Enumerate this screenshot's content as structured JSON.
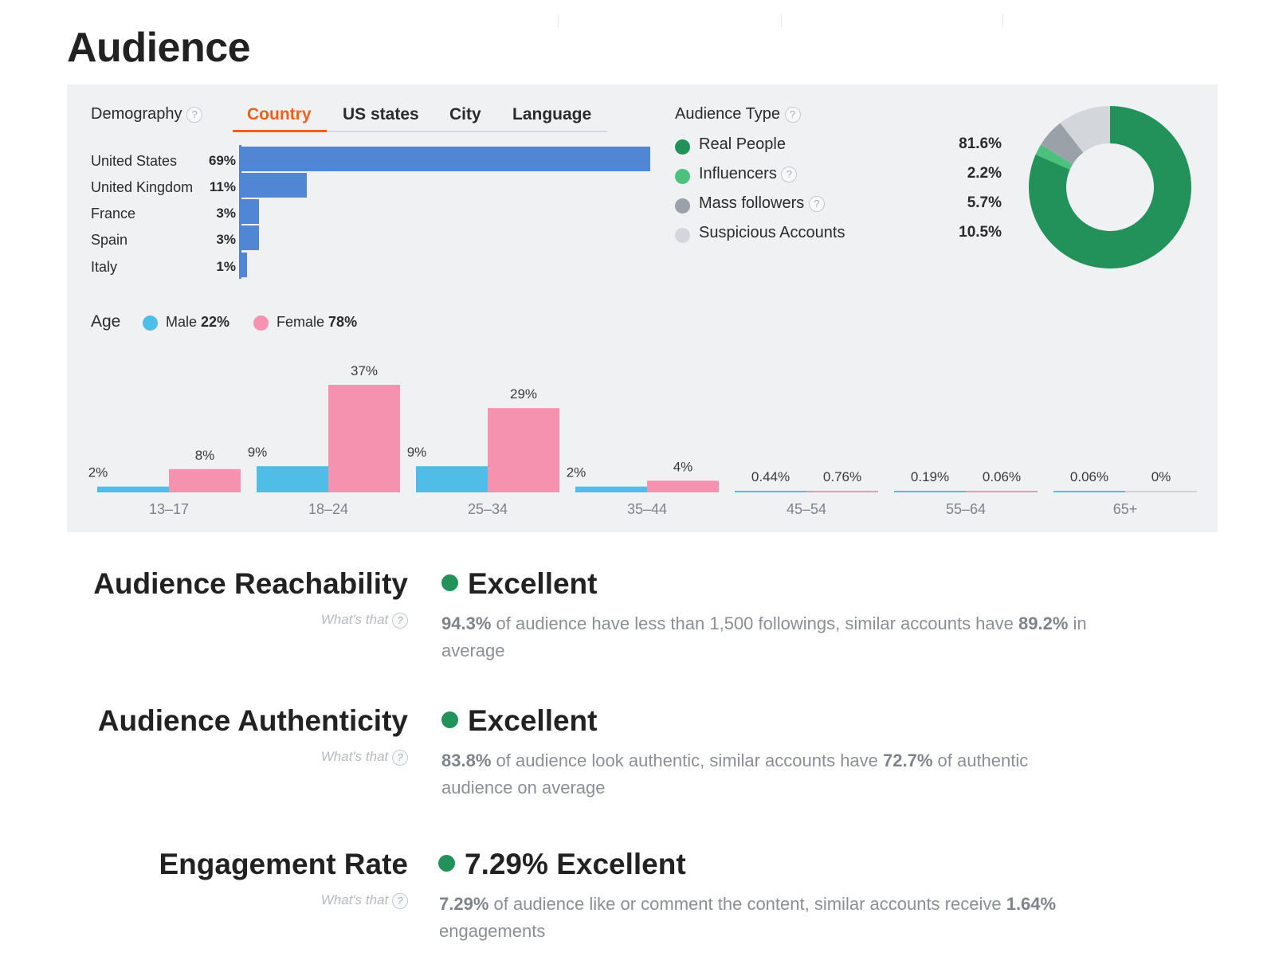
{
  "page": {
    "title": "Audience"
  },
  "demography": {
    "label": "Demography",
    "tabs": [
      "Country",
      "US states",
      "City",
      "Language"
    ],
    "active_tab": "Country",
    "countries": [
      {
        "name": "United States",
        "pct_label": "69%",
        "value": 69
      },
      {
        "name": "United Kingdom",
        "pct_label": "11%",
        "value": 11
      },
      {
        "name": "France",
        "pct_label": "3%",
        "value": 3
      },
      {
        "name": "Spain",
        "pct_label": "3%",
        "value": 3
      },
      {
        "name": "Italy",
        "pct_label": "1%",
        "value": 1
      }
    ],
    "bar_color": "#5186d4"
  },
  "audience_type": {
    "label": "Audience Type",
    "items": [
      {
        "name": "Real People",
        "value_label": "81.6%",
        "value": 81.6,
        "color": "#23925a",
        "has_help": false
      },
      {
        "name": "Influencers",
        "value_label": "2.2%",
        "value": 2.2,
        "color": "#4cc17e",
        "has_help": true
      },
      {
        "name": "Mass followers",
        "value_label": "5.7%",
        "value": 5.7,
        "color": "#9aa1a8",
        "has_help": true
      },
      {
        "name": "Suspicious Accounts",
        "value_label": "10.5%",
        "value": 10.5,
        "color": "#d3d7db",
        "has_help": false
      }
    ]
  },
  "age": {
    "label": "Age",
    "legend": {
      "male_label": "Male",
      "male_value": "22%",
      "male_color": "#4fbde6",
      "female_label": "Female",
      "female_value": "78%",
      "female_color": "#f592b0"
    }
  },
  "chart_data": {
    "type": "bar",
    "categories": [
      "13–17",
      "18–24",
      "25–34",
      "35–44",
      "45–54",
      "55–64",
      "65+"
    ],
    "series": [
      {
        "name": "Male",
        "values": [
          2,
          9,
          9,
          2,
          0.44,
          0.19,
          0.06
        ],
        "labels": [
          "2%",
          "9%",
          "9%",
          "2%",
          "0.44%",
          "0.19%",
          "0.06%"
        ],
        "color": "#4fbde6"
      },
      {
        "name": "Female",
        "values": [
          8,
          37,
          29,
          4,
          0.76,
          0.06,
          0
        ],
        "labels": [
          "8%",
          "37%",
          "29%",
          "4%",
          "0.76%",
          "0.06%",
          "0%"
        ],
        "color": "#f592b0"
      }
    ],
    "ylim": [
      0,
      37
    ]
  },
  "metrics": [
    {
      "title": "Audience Reachability",
      "whats_that": "What's that",
      "status": "Excellent",
      "desc_pre": "94.3%",
      "desc_mid": " of audience have less than 1,500 followings, similar accounts have ",
      "desc_bold2": "89.2%",
      "desc_post": " in average"
    },
    {
      "title": "Audience Authenticity",
      "whats_that": "What's that",
      "status": "Excellent",
      "desc_pre": "83.8%",
      "desc_mid": " of audience look authentic, similar accounts have ",
      "desc_bold2": "72.7%",
      "desc_post": " of authentic audience on average"
    },
    {
      "title": "Engagement Rate",
      "whats_that": "What's that",
      "status": "7.29% Excellent",
      "desc_pre": "7.29%",
      "desc_mid": " of audience like or comment the content, similar accounts receive ",
      "desc_bold2": "1.64%",
      "desc_post": " engagements"
    }
  ],
  "help_glyph": "?"
}
